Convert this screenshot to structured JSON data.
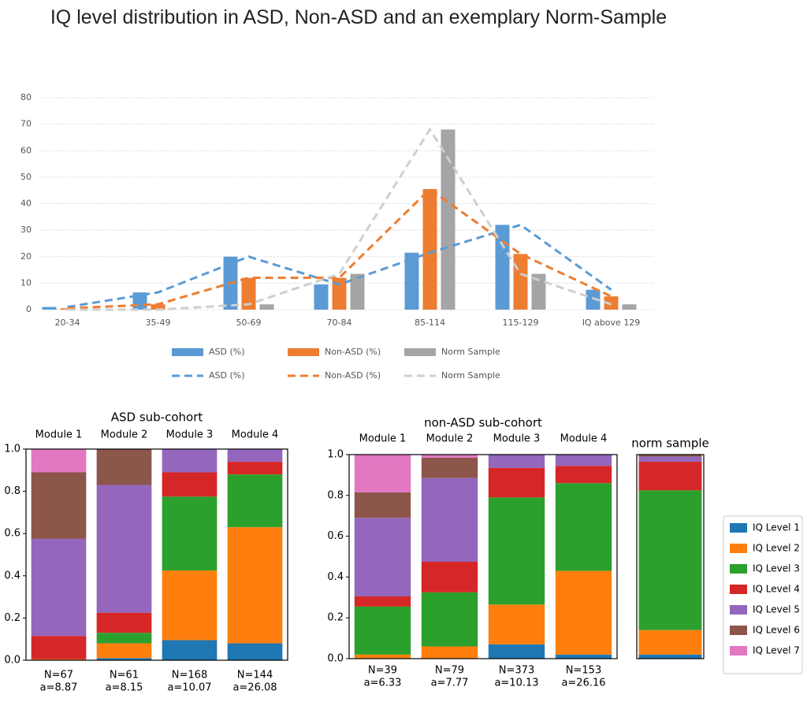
{
  "chart_data": [
    {
      "type": "bar_line",
      "title": "IQ level distribution in ASD, Non-ASD and an exemplary Norm-Sample",
      "categories": [
        "20-34",
        "35-49",
        "50-69",
        "70-84",
        "85-114",
        "115-129",
        "IQ above 129"
      ],
      "series": [
        {
          "name": "ASD (%)",
          "color": "#5b9bd5",
          "style": "bar",
          "values": [
            1,
            6.5,
            20,
            9.5,
            21.5,
            32,
            7.5
          ]
        },
        {
          "name": "Non-ASD (%)",
          "color": "#ed7d31",
          "style": "bar",
          "values": [
            0.5,
            2,
            12,
            12,
            45.5,
            21,
            5
          ]
        },
        {
          "name": "Norm Sample",
          "color": "#a5a5a5",
          "style": "bar",
          "values": [
            0,
            0,
            2,
            13.5,
            68,
            13.5,
            2
          ]
        },
        {
          "name": "ASD (%)",
          "color": "#5b9bd5",
          "style": "dashed",
          "values": [
            1,
            6.5,
            20,
            9.5,
            21.5,
            32,
            7.5
          ]
        },
        {
          "name": "Non-ASD (%)",
          "color": "#ed7d31",
          "style": "dashed",
          "values": [
            0.5,
            2,
            12,
            12,
            45.5,
            21,
            5
          ]
        },
        {
          "name": "Norm Sample",
          "color": "#cfcfcf",
          "style": "dashed",
          "values": [
            0,
            0,
            2,
            13.5,
            68,
            13.5,
            2
          ]
        }
      ],
      "ylim": [
        0,
        80
      ],
      "yticks": [
        0,
        10,
        20,
        30,
        40,
        50,
        60,
        70,
        80
      ],
      "grid": true
    },
    {
      "type": "stacked_bar",
      "title": "ASD sub-cohort",
      "categories": [
        "Module 1",
        "Module 2",
        "Module 3",
        "Module 4"
      ],
      "n_labels": [
        "N=67",
        "N=61",
        "N=168",
        "N=144"
      ],
      "a_labels": [
        "a=8.87",
        "a=8.15",
        "a=10.07",
        "a=26.08"
      ],
      "series": [
        {
          "name": "IQ Level 1",
          "color": "#1f77b4",
          "values": [
            0,
            0.01,
            0.095,
            0.08
          ]
        },
        {
          "name": "IQ Level 2",
          "color": "#ff7f0e",
          "values": [
            0.005,
            0.07,
            0.33,
            0.55
          ]
        },
        {
          "name": "IQ Level 3",
          "color": "#2ca02c",
          "values": [
            0,
            0.05,
            0.35,
            0.25
          ]
        },
        {
          "name": "IQ Level 4",
          "color": "#d62728",
          "values": [
            0.11,
            0.095,
            0.115,
            0.06
          ]
        },
        {
          "name": "IQ Level 5",
          "color": "#9467bd",
          "values": [
            0.46,
            0.605,
            0.11,
            0.06
          ]
        },
        {
          "name": "IQ Level 6",
          "color": "#8c564b",
          "values": [
            0.315,
            0.17,
            0,
            0
          ]
        },
        {
          "name": "IQ Level 7",
          "color": "#e377c2",
          "values": [
            0.11,
            0,
            0,
            0
          ]
        }
      ],
      "ylim": [
        0,
        1
      ],
      "yticks": [
        {
          "value": 0,
          "label": "0.0"
        },
        0.2,
        0.4,
        0.6,
        0.8,
        {
          "value": 1,
          "label": "1.0"
        }
      ]
    },
    {
      "type": "stacked_bar",
      "title": "non-ASD sub-cohort",
      "categories": [
        "Module 1",
        "Module 2",
        "Module 3",
        "Module 4"
      ],
      "n_labels": [
        "N=39",
        "N=79",
        "N=373",
        "N=153"
      ],
      "a_labels": [
        "a=6.33",
        "a=7.77",
        "a=10.13",
        "a=26.16"
      ],
      "series": [
        {
          "values": [
            0,
            0,
            0.07,
            0.02
          ]
        },
        {
          "values": [
            0.02,
            0.06,
            0.195,
            0.41
          ]
        },
        {
          "values": [
            0.235,
            0.265,
            0.525,
            0.43
          ]
        },
        {
          "values": [
            0.05,
            0.15,
            0.145,
            0.085
          ]
        },
        {
          "values": [
            0.385,
            0.41,
            0.065,
            0.055
          ]
        },
        {
          "values": [
            0.125,
            0.1,
            0,
            0
          ]
        },
        {
          "values": [
            0.185,
            0.015,
            0,
            0
          ]
        }
      ],
      "ylim": [
        0,
        1
      ],
      "yticks": [
        {
          "value": 0,
          "label": "0.0"
        },
        0.2,
        0.4,
        0.6,
        0.8,
        {
          "value": 1,
          "label": "1.0"
        }
      ]
    },
    {
      "type": "stacked_bar",
      "title": "norm sample",
      "categories": [
        null
      ],
      "series": [
        {
          "values": [
            0.02
          ]
        },
        {
          "values": [
            0.12
          ]
        },
        {
          "values": [
            0.685
          ]
        },
        {
          "values": [
            0.14
          ]
        },
        {
          "values": [
            0.025
          ]
        },
        {
          "values": [
            0.01
          ]
        },
        {
          "values": [
            0
          ]
        }
      ],
      "ylim": [
        0,
        1
      ]
    }
  ]
}
